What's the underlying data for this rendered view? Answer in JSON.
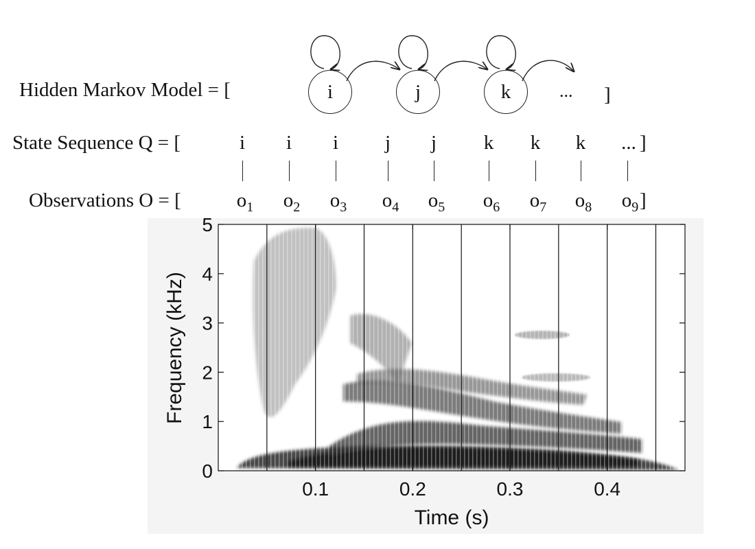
{
  "hmm": {
    "label": "Hidden Markov Model = [",
    "close_bracket": "]",
    "states": [
      "i",
      "j",
      "k"
    ],
    "ellipsis": "..."
  },
  "sequence": {
    "label": "State Sequence Q = [",
    "items": [
      "i",
      "i",
      "i",
      "j",
      "j",
      "k",
      "k",
      "k",
      "..."
    ],
    "close_bracket": "]"
  },
  "observations": {
    "label": "Observations  O = [",
    "symbol": "o",
    "indices": [
      "1",
      "2",
      "3",
      "4",
      "5",
      "6",
      "7",
      "8",
      "9"
    ],
    "close_bracket": "]"
  },
  "chart_data": {
    "type": "heatmap",
    "title": "",
    "xlabel": "Time (s)",
    "ylabel": "Frequency (kHz)",
    "xlim": [
      0.0,
      0.48
    ],
    "ylim": [
      0,
      5
    ],
    "xticks": [
      0.1,
      0.2,
      0.3,
      0.4
    ],
    "xtick_labels": [
      "0.1",
      "0.2",
      "0.3",
      "0.4"
    ],
    "yticks": [
      0,
      1,
      2,
      3,
      4,
      5
    ],
    "ytick_labels": [
      "0",
      "1",
      "2",
      "3",
      "4",
      "5"
    ],
    "frame_boundaries_s": [
      0.05,
      0.1,
      0.15,
      0.2,
      0.25,
      0.3,
      0.35,
      0.4,
      0.45
    ],
    "colormap": "gray-inverted",
    "grid": false
  }
}
